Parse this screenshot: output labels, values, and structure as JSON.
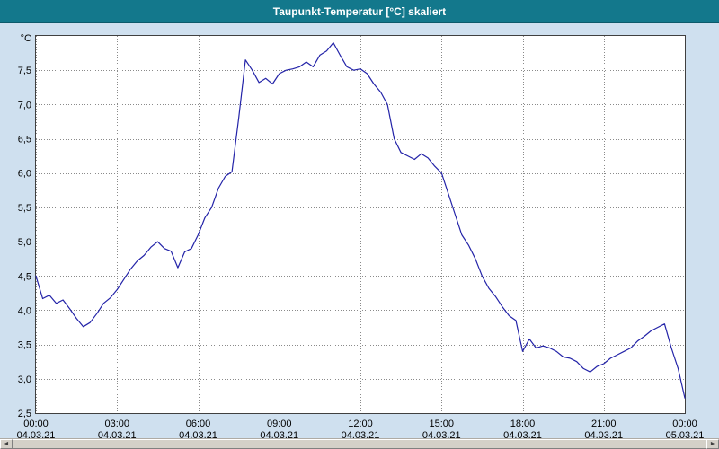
{
  "header": {
    "title": "Taupunkt-Temperatur [°C] skaliert"
  },
  "theme": {
    "titlebar_bg": "#13788c",
    "titlebar_text": "#ffffff",
    "page_bg": "#cfe0ef",
    "plot_bg": "#ffffff",
    "grid_color": "#8a8a8a",
    "border_color": "#404040",
    "line_color": "#2323a8"
  },
  "chart_data": {
    "type": "line",
    "title": "Taupunkt-Temperatur [°C] skaliert",
    "ylabel_unit": "°C",
    "xlabel": "",
    "ylim": [
      2.5,
      8.0
    ],
    "xlim_hours": [
      0,
      24
    ],
    "grid": "dotted",
    "legend": "none",
    "yticks": [
      {
        "value": 2.5,
        "label": "2,5"
      },
      {
        "value": 3.0,
        "label": "3,0"
      },
      {
        "value": 3.5,
        "label": "3,5"
      },
      {
        "value": 4.0,
        "label": "4,0"
      },
      {
        "value": 4.5,
        "label": "4,5"
      },
      {
        "value": 5.0,
        "label": "5,0"
      },
      {
        "value": 5.5,
        "label": "5,5"
      },
      {
        "value": 6.0,
        "label": "6,0"
      },
      {
        "value": 6.5,
        "label": "6,5"
      },
      {
        "value": 7.0,
        "label": "7,0"
      },
      {
        "value": 7.5,
        "label": "7,5"
      }
    ],
    "xticks": [
      {
        "hour": 0,
        "label": "00:00",
        "date": "04.03.21"
      },
      {
        "hour": 3,
        "label": "03:00",
        "date": "04.03.21"
      },
      {
        "hour": 6,
        "label": "06:00",
        "date": "04.03.21"
      },
      {
        "hour": 9,
        "label": "09:00",
        "date": "04.03.21"
      },
      {
        "hour": 12,
        "label": "12:00",
        "date": "04.03.21"
      },
      {
        "hour": 15,
        "label": "15:00",
        "date": "04.03.21"
      },
      {
        "hour": 18,
        "label": "18:00",
        "date": "04.03.21"
      },
      {
        "hour": 21,
        "label": "21:00",
        "date": "04.03.21"
      },
      {
        "hour": 24,
        "label": "00:00",
        "date": "05.03.21"
      }
    ],
    "series_name": "Taupunkt-Temperatur",
    "points": [
      [
        0.0,
        4.5
      ],
      [
        0.25,
        4.17
      ],
      [
        0.5,
        4.22
      ],
      [
        0.75,
        4.1
      ],
      [
        1.0,
        4.15
      ],
      [
        1.25,
        4.02
      ],
      [
        1.5,
        3.88
      ],
      [
        1.75,
        3.76
      ],
      [
        2.0,
        3.82
      ],
      [
        2.25,
        3.95
      ],
      [
        2.5,
        4.1
      ],
      [
        2.75,
        4.18
      ],
      [
        3.0,
        4.3
      ],
      [
        3.25,
        4.45
      ],
      [
        3.5,
        4.6
      ],
      [
        3.75,
        4.72
      ],
      [
        4.0,
        4.8
      ],
      [
        4.25,
        4.92
      ],
      [
        4.5,
        5.0
      ],
      [
        4.75,
        4.9
      ],
      [
        5.0,
        4.86
      ],
      [
        5.25,
        4.62
      ],
      [
        5.5,
        4.85
      ],
      [
        5.75,
        4.9
      ],
      [
        6.0,
        5.1
      ],
      [
        6.25,
        5.35
      ],
      [
        6.5,
        5.5
      ],
      [
        6.75,
        5.78
      ],
      [
        7.0,
        5.95
      ],
      [
        7.25,
        6.02
      ],
      [
        7.5,
        6.8
      ],
      [
        7.75,
        7.65
      ],
      [
        8.0,
        7.5
      ],
      [
        8.25,
        7.32
      ],
      [
        8.5,
        7.38
      ],
      [
        8.75,
        7.3
      ],
      [
        9.0,
        7.45
      ],
      [
        9.25,
        7.5
      ],
      [
        9.5,
        7.52
      ],
      [
        9.75,
        7.55
      ],
      [
        10.0,
        7.62
      ],
      [
        10.25,
        7.55
      ],
      [
        10.5,
        7.72
      ],
      [
        10.75,
        7.78
      ],
      [
        11.0,
        7.9
      ],
      [
        11.25,
        7.72
      ],
      [
        11.5,
        7.55
      ],
      [
        11.75,
        7.5
      ],
      [
        12.0,
        7.52
      ],
      [
        12.25,
        7.45
      ],
      [
        12.5,
        7.3
      ],
      [
        12.75,
        7.18
      ],
      [
        13.0,
        7.0
      ],
      [
        13.25,
        6.5
      ],
      [
        13.5,
        6.3
      ],
      [
        13.75,
        6.25
      ],
      [
        14.0,
        6.2
      ],
      [
        14.25,
        6.28
      ],
      [
        14.5,
        6.22
      ],
      [
        14.75,
        6.1
      ],
      [
        15.0,
        6.0
      ],
      [
        15.25,
        5.7
      ],
      [
        15.5,
        5.4
      ],
      [
        15.75,
        5.1
      ],
      [
        16.0,
        4.95
      ],
      [
        16.25,
        4.75
      ],
      [
        16.5,
        4.5
      ],
      [
        16.75,
        4.32
      ],
      [
        17.0,
        4.2
      ],
      [
        17.25,
        4.05
      ],
      [
        17.5,
        3.92
      ],
      [
        17.75,
        3.85
      ],
      [
        18.0,
        3.4
      ],
      [
        18.25,
        3.58
      ],
      [
        18.5,
        3.45
      ],
      [
        18.75,
        3.48
      ],
      [
        19.0,
        3.45
      ],
      [
        19.25,
        3.4
      ],
      [
        19.5,
        3.32
      ],
      [
        19.75,
        3.3
      ],
      [
        20.0,
        3.25
      ],
      [
        20.25,
        3.15
      ],
      [
        20.5,
        3.1
      ],
      [
        20.75,
        3.18
      ],
      [
        21.0,
        3.22
      ],
      [
        21.25,
        3.3
      ],
      [
        21.5,
        3.35
      ],
      [
        21.75,
        3.4
      ],
      [
        22.0,
        3.45
      ],
      [
        22.25,
        3.55
      ],
      [
        22.5,
        3.62
      ],
      [
        22.75,
        3.7
      ],
      [
        23.0,
        3.75
      ],
      [
        23.25,
        3.8
      ],
      [
        23.5,
        3.45
      ],
      [
        23.75,
        3.15
      ],
      [
        24.0,
        2.72
      ]
    ]
  },
  "scrollbar": {
    "left_arrow": "◄",
    "right_arrow": "►"
  }
}
